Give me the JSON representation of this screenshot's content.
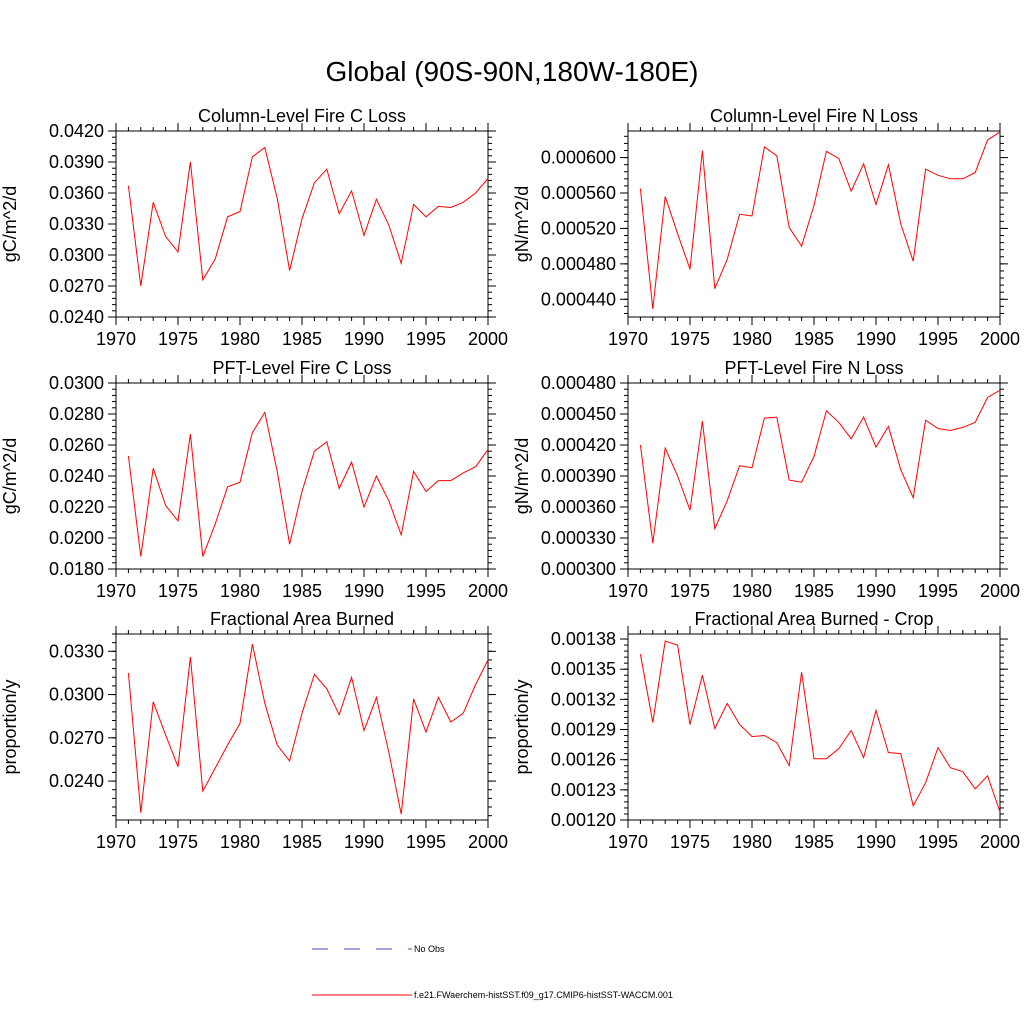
{
  "main_title": "Global (90S-90N,180W-180E)",
  "colors": {
    "model": "#ff0000",
    "obs": "#4a4ab8",
    "axis": "#000000"
  },
  "legend": {
    "obs_label": "No Obs",
    "model_label": "f.e21.FWaerchem-histSST.f09_g17.CMIP6-histSST-WACCM.001"
  },
  "chart_data": [
    {
      "type": "line",
      "title": "Column-Level Fire C Loss",
      "ylabel": "gC/m^2/d",
      "xlim": [
        1970,
        2000
      ],
      "ylim": [
        0.024,
        0.042
      ],
      "xticks": [
        "1970",
        "1975",
        "1980",
        "1985",
        "1990",
        "1995",
        "2000"
      ],
      "yticks": [
        "0.0240",
        "0.0270",
        "0.0300",
        "0.0330",
        "0.0360",
        "0.0390",
        "0.0420"
      ],
      "x": [
        1971,
        1972,
        1973,
        1974,
        1975,
        1976,
        1977,
        1978,
        1979,
        1980,
        1981,
        1982,
        1983,
        1984,
        1985,
        1986,
        1987,
        1988,
        1989,
        1990,
        1991,
        1992,
        1993,
        1994,
        1995,
        1996,
        1997,
        1998,
        1999,
        2000
      ],
      "series": [
        {
          "name": "f.e21.FWaerchem-histSST.f09_g17.CMIP6-histSST-WACCM.001",
          "values": [
            0.0367,
            0.027,
            0.0351,
            0.0318,
            0.0303,
            0.039,
            0.0276,
            0.0296,
            0.0337,
            0.0342,
            0.0395,
            0.0404,
            0.0355,
            0.0285,
            0.0335,
            0.037,
            0.0383,
            0.034,
            0.0362,
            0.0319,
            0.0354,
            0.0329,
            0.0292,
            0.0349,
            0.0337,
            0.0347,
            0.0346,
            0.0351,
            0.036,
            0.0374
          ]
        }
      ]
    },
    {
      "type": "line",
      "title": "Column-Level Fire N Loss",
      "ylabel": "gN/m^2/d",
      "xlim": [
        1970,
        2000
      ],
      "ylim": [
        0.00042,
        0.00063
      ],
      "xticks": [
        "1970",
        "1975",
        "1980",
        "1985",
        "1990",
        "1995",
        "2000"
      ],
      "yticks": [
        "0.000440",
        "0.000480",
        "0.000520",
        "0.000560",
        "0.000600"
      ],
      "ytick_values": [
        0.00044,
        0.00048,
        0.00052,
        0.00056,
        0.0006
      ],
      "x": [
        1971,
        1972,
        1973,
        1974,
        1975,
        1976,
        1977,
        1978,
        1979,
        1980,
        1981,
        1982,
        1983,
        1984,
        1985,
        1986,
        1987,
        1988,
        1989,
        1990,
        1991,
        1992,
        1993,
        1994,
        1995,
        1996,
        1997,
        1998,
        1999,
        2000
      ],
      "series": [
        {
          "name": "f.e21.FWaerchem-histSST.f09_g17.CMIP6-histSST-WACCM.001",
          "values": [
            0.000565,
            0.000429,
            0.000556,
            0.000514,
            0.000474,
            0.000608,
            0.000452,
            0.000485,
            0.000536,
            0.000534,
            0.000612,
            0.000602,
            0.000521,
            0.0005,
            0.000546,
            0.000607,
            0.000599,
            0.000562,
            0.000593,
            0.000547,
            0.000592,
            0.000525,
            0.000483,
            0.000587,
            0.00058,
            0.000576,
            0.000576,
            0.000583,
            0.00062,
            0.000629
          ]
        }
      ]
    },
    {
      "type": "line",
      "title": "PFT-Level Fire C Loss",
      "ylabel": "gC/m^2/d",
      "xlim": [
        1970,
        2000
      ],
      "ylim": [
        0.018,
        0.03
      ],
      "xticks": [
        "1970",
        "1975",
        "1980",
        "1985",
        "1990",
        "1995",
        "2000"
      ],
      "yticks": [
        "0.0180",
        "0.0200",
        "0.0220",
        "0.0240",
        "0.0260",
        "0.0280",
        "0.0300"
      ],
      "x": [
        1971,
        1972,
        1973,
        1974,
        1975,
        1976,
        1977,
        1978,
        1979,
        1980,
        1981,
        1982,
        1983,
        1984,
        1985,
        1986,
        1987,
        1988,
        1989,
        1990,
        1991,
        1992,
        1993,
        1994,
        1995,
        1996,
        1997,
        1998,
        1999,
        2000
      ],
      "series": [
        {
          "name": "f.e21.FWaerchem-histSST.f09_g17.CMIP6-histSST-WACCM.001",
          "values": [
            0.0253,
            0.0188,
            0.0245,
            0.0221,
            0.0211,
            0.0267,
            0.0188,
            0.0209,
            0.0233,
            0.0236,
            0.0268,
            0.0281,
            0.0243,
            0.0196,
            0.023,
            0.0256,
            0.0262,
            0.0232,
            0.0249,
            0.022,
            0.024,
            0.0224,
            0.0202,
            0.0243,
            0.023,
            0.0237,
            0.0237,
            0.0242,
            0.0246,
            0.0257
          ]
        }
      ]
    },
    {
      "type": "line",
      "title": "PFT-Level Fire N Loss",
      "ylabel": "gN/m^2/d",
      "xlim": [
        1970,
        2000
      ],
      "ylim": [
        0.0003,
        0.00048
      ],
      "xticks": [
        "1970",
        "1975",
        "1980",
        "1985",
        "1990",
        "1995",
        "2000"
      ],
      "yticks": [
        "0.000300",
        "0.000330",
        "0.000360",
        "0.000390",
        "0.000420",
        "0.000450",
        "0.000480"
      ],
      "x": [
        1971,
        1972,
        1973,
        1974,
        1975,
        1976,
        1977,
        1978,
        1979,
        1980,
        1981,
        1982,
        1983,
        1984,
        1985,
        1986,
        1987,
        1988,
        1989,
        1990,
        1991,
        1992,
        1993,
        1994,
        1995,
        1996,
        1997,
        1998,
        1999,
        2000
      ],
      "series": [
        {
          "name": "f.e21.FWaerchem-histSST.f09_g17.CMIP6-histSST-WACCM.001",
          "values": [
            0.00042,
            0.000325,
            0.000417,
            0.00039,
            0.000357,
            0.000443,
            0.000339,
            0.000366,
            0.0004,
            0.000398,
            0.000446,
            0.000447,
            0.000386,
            0.000384,
            0.000409,
            0.000453,
            0.000442,
            0.000426,
            0.000447,
            0.000418,
            0.000438,
            0.000396,
            0.000369,
            0.000444,
            0.000436,
            0.000434,
            0.000437,
            0.000442,
            0.000466,
            0.000473
          ]
        }
      ]
    },
    {
      "type": "line",
      "title": "Fractional Area Burned",
      "ylabel": "proportion/y",
      "xlim": [
        1970,
        2000
      ],
      "ylim": [
        0.0213,
        0.0342
      ],
      "xticks": [
        "1970",
        "1975",
        "1980",
        "1985",
        "1990",
        "1995",
        "2000"
      ],
      "yticks": [
        "0.0240",
        "0.0270",
        "0.0300",
        "0.0330"
      ],
      "ytick_values": [
        0.024,
        0.027,
        0.03,
        0.033
      ],
      "x": [
        1971,
        1972,
        1973,
        1974,
        1975,
        1976,
        1977,
        1978,
        1979,
        1980,
        1981,
        1982,
        1983,
        1984,
        1985,
        1986,
        1987,
        1988,
        1989,
        1990,
        1991,
        1992,
        1993,
        1994,
        1995,
        1996,
        1997,
        1998,
        1999,
        2000
      ],
      "series": [
        {
          "name": "f.e21.FWaerchem-histSST.f09_g17.CMIP6-histSST-WACCM.001",
          "values": [
            0.0315,
            0.0218,
            0.0295,
            0.0272,
            0.025,
            0.0326,
            0.0233,
            0.0249,
            0.0265,
            0.028,
            0.0335,
            0.0294,
            0.0265,
            0.0254,
            0.0287,
            0.0314,
            0.0304,
            0.0286,
            0.0312,
            0.0275,
            0.0298,
            0.026,
            0.0217,
            0.0297,
            0.0274,
            0.0298,
            0.0281,
            0.0287,
            0.0307,
            0.0324
          ]
        }
      ]
    },
    {
      "type": "line",
      "title": "Fractional Area Burned - Crop",
      "ylabel": "proportion/y",
      "xlim": [
        1970,
        2000
      ],
      "ylim": [
        0.0012,
        0.001385
      ],
      "xticks": [
        "1970",
        "1975",
        "1980",
        "1985",
        "1990",
        "1995",
        "2000"
      ],
      "yticks": [
        "0.00120",
        "0.00123",
        "0.00126",
        "0.00129",
        "0.00132",
        "0.00135",
        "0.00138"
      ],
      "x": [
        1971,
        1972,
        1973,
        1974,
        1975,
        1976,
        1977,
        1978,
        1979,
        1980,
        1981,
        1982,
        1983,
        1984,
        1985,
        1986,
        1987,
        1988,
        1989,
        1990,
        1991,
        1992,
        1993,
        1994,
        1995,
        1996,
        1997,
        1998,
        1999,
        2000
      ],
      "series": [
        {
          "name": "f.e21.FWaerchem-histSST.f09_g17.CMIP6-histSST-WACCM.001",
          "values": [
            0.001365,
            0.001297,
            0.001378,
            0.001374,
            0.001295,
            0.001344,
            0.001291,
            0.001316,
            0.001295,
            0.001283,
            0.001284,
            0.001277,
            0.001254,
            0.001347,
            0.001261,
            0.001261,
            0.001271,
            0.001289,
            0.001262,
            0.001309,
            0.001267,
            0.001266,
            0.001214,
            0.001237,
            0.001272,
            0.001252,
            0.001248,
            0.001231,
            0.001244,
            0.001208
          ]
        }
      ]
    }
  ]
}
